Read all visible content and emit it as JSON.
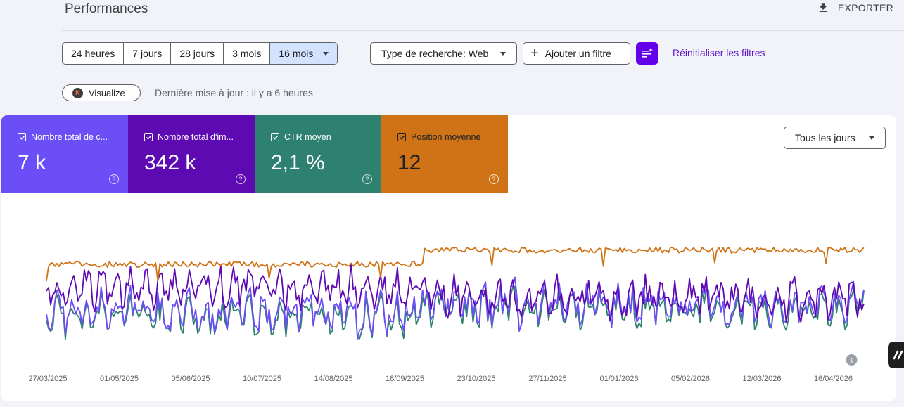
{
  "header": {
    "title": "Performances",
    "export_label": "EXPORTER"
  },
  "date_range": {
    "options": [
      "24 heures",
      "7 jours",
      "28 jours",
      "3 mois",
      "16 mois"
    ],
    "selected": "16 mois"
  },
  "filters": {
    "search_type_label": "Type de recherche: Web",
    "add_filter_label": "Ajouter un filtre",
    "reset_label": "Réinitialiser les filtres"
  },
  "status": {
    "visualize_label": "Visualize",
    "updated_text": "Dernière mise à jour : il y a 6 heures"
  },
  "metrics": [
    {
      "label": "Nombre total de c...",
      "value": "7 k",
      "color": "#6c4ef7"
    },
    {
      "label": "Nombre total d'im...",
      "value": "342 k",
      "color": "#5e0ab2"
    },
    {
      "label": "CTR moyen",
      "value": "2,1 %",
      "color": "#2e8170"
    },
    {
      "label": "Position moyenne",
      "value": "12",
      "color": "#cf7316"
    }
  ],
  "granularity": {
    "selected": "Tous les jours"
  },
  "chart_data": {
    "type": "line",
    "x_tick_labels": [
      "27/03/2025",
      "01/05/2025",
      "05/06/2025",
      "10/07/2025",
      "14/08/2025",
      "18/09/2025",
      "23/10/2025",
      "27/11/2025",
      "01/01/2026",
      "05/02/2026",
      "12/03/2026",
      "16/04/2026"
    ],
    "annotations": [
      {
        "x": "16/04/2026",
        "label": "1"
      }
    ],
    "series": [
      {
        "color": "#6c4ef7"
      },
      {
        "color": "#5e0ab2"
      },
      {
        "color": "#2e8170"
      },
      {
        "color": "#cf7316"
      }
    ]
  }
}
